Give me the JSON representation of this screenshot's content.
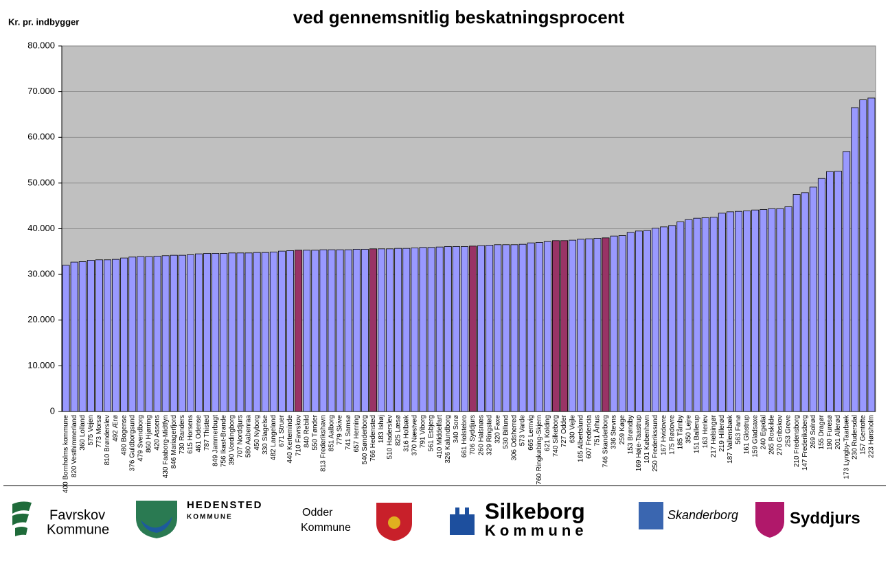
{
  "chart_data": {
    "type": "bar",
    "title": "ved gennemsnitlig beskatningsprocent",
    "y_label": "Kr. pr. indbygger",
    "categories": [
      "400 Bornholms kommune",
      "820 Vesthimmerland",
      "360 Lolland",
      "575 Vejen",
      "773 Morsø",
      "810 Brønderslev",
      "492 Ærø",
      "480 Bogense",
      "376 Guldborgsund",
      "479 Svendborg",
      "860 Hjørring",
      "420 Assens",
      "430 Faaborg-Midtfyn",
      "846 Mariagerfjord",
      "730 Randers",
      "615 Horsens",
      "461 Odense",
      "787 Thisted",
      "849 Jammerbugt",
      "756 Ikast-Brande",
      "390 Vordingborg",
      "707 Norddjurs",
      "580 Aabenraa",
      "450 Nyborg",
      "330 Slagelse",
      "482 Langeland",
      "671 Struer",
      "440 Kerteminde",
      "710 Favrskov",
      "840 Rebild",
      "550 Tønder",
      "813 Frederikshavn",
      "851 Aalborg",
      "779 Skive",
      "741 Samsø",
      "657 Herning",
      "540 Sønderborg",
      "766 Hedensted",
      "183 Ishøj",
      "510 Haderslev",
      "825 Læsø",
      "316 Holbæk",
      "370 Næstved",
      "791 Viborg",
      "561 Esbjerg",
      "410 Middelfart",
      "326 Kalundborg",
      "340 Sorø",
      "661 Holstebro",
      "706 Syddjurs",
      "260 Halsnæs",
      "329 Ringsted",
      "320 Faxe",
      "530 Billund",
      "306 Odsherred",
      "573 Varde",
      "665 Lemvig",
      "760 Ringkøbing-Skjern",
      "621 Kolding",
      "740 Silkeborg",
      "727 Odder",
      "630 Vejle",
      "165 Albertslund",
      "607 Fredericia",
      "751 Århus",
      "746 Skanderborg",
      "336 Stevns",
      "259 Køge",
      "153 Brøndby",
      "169 Høje-Taastrup",
      "101 København",
      "250 Frederikssund",
      "167 Hvidovre",
      "175 Rødovre",
      "185 Tårnby",
      "350 Lejre",
      "151 Ballerup",
      "163 Herlev",
      "217 Helsingør",
      "219 Hillerød",
      "187 Vallensbæk",
      "563 Fanø",
      "161 Glostrup",
      "159 Gladsaxe",
      "240 Egedal",
      "265 Roskilde",
      "270 Gribskov",
      "253 Greve",
      "210 Fredensborg",
      "147 Frederiksberg",
      "269 Solrød",
      "155 Dragør",
      "190 Furesø",
      "201 Allerød",
      "173 Lyngby-Taarbæk",
      "230 Rudersdal",
      "157 Gentofte",
      "223 Hørsholm"
    ],
    "values": [
      32000,
      32700,
      32800,
      33100,
      33200,
      33200,
      33300,
      33600,
      33800,
      33900,
      33900,
      34000,
      34100,
      34200,
      34200,
      34300,
      34500,
      34600,
      34600,
      34600,
      34700,
      34700,
      34700,
      34800,
      34800,
      34900,
      35100,
      35200,
      35300,
      35300,
      35300,
      35400,
      35400,
      35400,
      35400,
      35500,
      35500,
      35600,
      35600,
      35600,
      35700,
      35700,
      35800,
      35900,
      35900,
      36000,
      36100,
      36100,
      36100,
      36200,
      36300,
      36400,
      36500,
      36500,
      36500,
      36600,
      36900,
      37000,
      37200,
      37400,
      37400,
      37500,
      37700,
      37800,
      37900,
      38000,
      38400,
      38500,
      39200,
      39500,
      39600,
      40100,
      40400,
      40700,
      41500,
      42000,
      42300,
      42400,
      42500,
      43400,
      43700,
      43800,
      43900,
      44100,
      44200,
      44400,
      44400,
      44800,
      47500,
      47900,
      49100,
      51000,
      52500,
      52600,
      56900,
      66500,
      68200,
      68600
    ],
    "colors": [
      "#9999ff",
      "#9999ff",
      "#9999ff",
      "#9999ff",
      "#9999ff",
      "#9999ff",
      "#9999ff",
      "#9999ff",
      "#9999ff",
      "#9999ff",
      "#9999ff",
      "#9999ff",
      "#9999ff",
      "#9999ff",
      "#9999ff",
      "#9999ff",
      "#9999ff",
      "#9999ff",
      "#9999ff",
      "#9999ff",
      "#9999ff",
      "#9999ff",
      "#9999ff",
      "#9999ff",
      "#9999ff",
      "#9999ff",
      "#9999ff",
      "#9999ff",
      "#993366",
      "#9999ff",
      "#9999ff",
      "#9999ff",
      "#9999ff",
      "#9999ff",
      "#9999ff",
      "#9999ff",
      "#9999ff",
      "#993366",
      "#9999ff",
      "#9999ff",
      "#9999ff",
      "#9999ff",
      "#9999ff",
      "#9999ff",
      "#9999ff",
      "#9999ff",
      "#9999ff",
      "#9999ff",
      "#9999ff",
      "#993366",
      "#9999ff",
      "#9999ff",
      "#9999ff",
      "#9999ff",
      "#9999ff",
      "#9999ff",
      "#9999ff",
      "#9999ff",
      "#9999ff",
      "#993366",
      "#993366",
      "#9999ff",
      "#9999ff",
      "#9999ff",
      "#9999ff",
      "#993366",
      "#9999ff",
      "#9999ff",
      "#9999ff",
      "#9999ff",
      "#9999ff",
      "#9999ff",
      "#9999ff",
      "#9999ff",
      "#9999ff",
      "#9999ff",
      "#9999ff",
      "#9999ff",
      "#9999ff",
      "#9999ff",
      "#9999ff",
      "#9999ff",
      "#9999ff",
      "#9999ff",
      "#9999ff",
      "#9999ff",
      "#9999ff",
      "#9999ff",
      "#9999ff",
      "#9999ff",
      "#9999ff",
      "#9999ff",
      "#9999ff",
      "#9999ff",
      "#9999ff",
      "#9999ff",
      "#9999ff",
      "#9999ff"
    ],
    "ylim": [
      0,
      80000
    ],
    "yticks": [
      0,
      {
        "value": 10000,
        "label": "10.000"
      },
      {
        "value": 20000,
        "label": "20.000"
      },
      {
        "value": 30000,
        "label": "30.000"
      },
      {
        "value": 40000,
        "label": "40.000"
      },
      {
        "value": 50000,
        "label": "50.000"
      },
      {
        "value": 60000,
        "label": "60.000"
      },
      {
        "value": 70000,
        "label": "70.000"
      },
      {
        "value": 80000,
        "label": "80.000"
      }
    ],
    "plot_background": "#c0c0c0",
    "grid": true
  },
  "logos": {
    "favrskov": [
      "Favrskov",
      "Kommune"
    ],
    "hedensted": [
      "HEDENSTED",
      "KOMMUNE"
    ],
    "odder": [
      "Odder",
      "Kommune"
    ],
    "silkeborg": [
      "Silkeborg",
      "Kommune"
    ],
    "skanderborg": "Skanderborg",
    "syddjurs": "Syddjurs"
  }
}
